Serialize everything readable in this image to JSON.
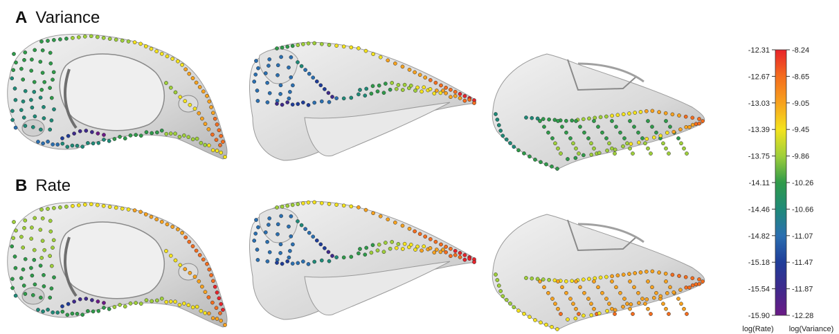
{
  "panels": [
    {
      "letter": "A",
      "title": "Variance"
    },
    {
      "letter": "B",
      "title": "Rate"
    }
  ],
  "colorbar": {
    "left_label": "log(Rate)",
    "right_label": "log(Variance)",
    "left_ticks": [
      "-12.31",
      "-12.67",
      "-13.03",
      "-13.39",
      "-13.75",
      "-14.11",
      "-14.46",
      "-14.82",
      "-15.18",
      "-15.54",
      "-15.90"
    ],
    "right_ticks": [
      "-8.24",
      "-8.65",
      "-9.05",
      "-9.45",
      "-9.86",
      "-10.26",
      "-10.66",
      "-11.07",
      "-11.47",
      "-11.87",
      "-12.28"
    ],
    "colors": [
      "#e8232a",
      "#f46d1e",
      "#f7a21e",
      "#f4e31e",
      "#9fcf3a",
      "#2f9a4a",
      "#1f8a78",
      "#2b6fb0",
      "#1f3d99",
      "#3f2a8c",
      "#6b1a86"
    ]
  }
}
